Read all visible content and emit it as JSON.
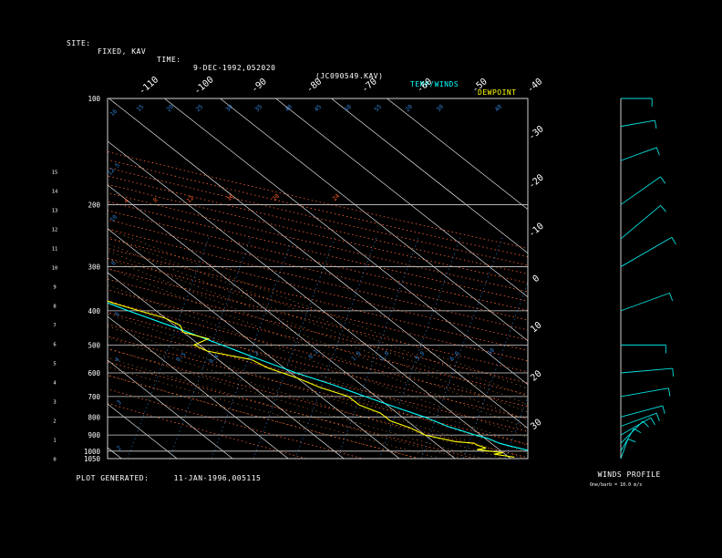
{
  "header": {
    "site_label": "SITE:",
    "site_value": "FIXED, KAV",
    "time_label": "TIME:",
    "time_value": "9-DEC-1992,052020",
    "file_id": "(JC090549.KAV)",
    "temp_legend": "TEMP/WINDS",
    "dewpoint_legend": "DEWPOINT"
  },
  "footer": {
    "generated_label": "PLOT GENERATED:",
    "generated_value": "11-JAN-1996,005115",
    "winds_title": "WINDS PROFILE",
    "winds_note": "One/barb = 10.0 m/s"
  },
  "colors": {
    "temperature": "#00ffff",
    "dewpoint": "#ffff00",
    "isobar": "#cfcfcf",
    "isotherm": "#ffffff",
    "dry_adiabat": "#ff6030",
    "moist_adiabat": "#ffa040",
    "mixing_ratio": "#2f7fd0",
    "wind": "#00e0e0"
  },
  "chart_data": {
    "type": "line",
    "title": "",
    "xlabel": "",
    "ylabel": "",
    "pressure_ticks": [
      "100",
      "200",
      "300",
      "400",
      "500",
      "600",
      "700",
      "800",
      "900",
      "1000",
      "1050"
    ],
    "pressure_values": [
      100,
      200,
      300,
      400,
      500,
      600,
      700,
      800,
      900,
      1000,
      1050
    ],
    "height_ticks": [
      "0",
      "1",
      "2",
      "3",
      "4",
      "5",
      "6",
      "7",
      "8",
      "9",
      "10",
      "11",
      "12",
      "13",
      "14",
      "15"
    ],
    "top_temp_ticks": [
      "-110",
      "-100",
      "-90",
      "-80",
      "-70",
      "-60",
      "-50",
      "-40"
    ],
    "right_temp_ticks": [
      "-30",
      "-20",
      "-10",
      "0",
      "10",
      "20",
      "30"
    ],
    "blue_labels": [
      "16",
      "15",
      "20",
      "25",
      "30",
      "35",
      "40",
      "45",
      "50",
      "55",
      "12.5",
      "10",
      "8",
      "6",
      "4",
      "3",
      "2",
      "0.5",
      "0.4",
      "0.2",
      "0.1",
      "1.0",
      "2.0",
      "3.0",
      "6.0",
      "10",
      "20",
      "30",
      "40"
    ],
    "orange_labels": [
      "24",
      "20",
      "16",
      "12",
      "8",
      "4"
    ],
    "series": [
      {
        "name": "TEMP/WINDS",
        "points": [
          [
            1040,
            8
          ],
          [
            1020,
            7
          ],
          [
            1000,
            5.5
          ],
          [
            970,
            3
          ],
          [
            950,
            1.5
          ],
          [
            920,
            0.5
          ],
          [
            900,
            -1
          ],
          [
            850,
            -4
          ],
          [
            800,
            -6
          ],
          [
            750,
            -9
          ],
          [
            700,
            -12
          ],
          [
            650,
            -15
          ],
          [
            600,
            -19
          ],
          [
            550,
            -22.5
          ],
          [
            500,
            -26
          ],
          [
            450,
            -30
          ],
          [
            400,
            -35
          ],
          [
            350,
            -40
          ],
          [
            300,
            -46
          ],
          [
            250,
            -52
          ],
          [
            220,
            -54
          ],
          [
            200,
            -56
          ],
          [
            180,
            -59
          ],
          [
            160,
            -63
          ],
          [
            140,
            -66
          ],
          [
            120,
            -68
          ],
          [
            110,
            -67
          ],
          [
            100,
            -66
          ]
        ]
      },
      {
        "name": "DEWPOINT",
        "points": [
          [
            1040,
            1
          ],
          [
            1020,
            -2
          ],
          [
            1010,
            0
          ],
          [
            1000,
            -2
          ],
          [
            990,
            -4
          ],
          [
            980,
            -2
          ],
          [
            960,
            -3
          ],
          [
            950,
            -3
          ],
          [
            940,
            -6
          ],
          [
            920,
            -8
          ],
          [
            900,
            -10
          ],
          [
            860,
            -11
          ],
          [
            820,
            -13
          ],
          [
            780,
            -13
          ],
          [
            740,
            -15
          ],
          [
            700,
            -15
          ],
          [
            660,
            -18
          ],
          [
            620,
            -20
          ],
          [
            580,
            -23
          ],
          [
            550,
            -24
          ],
          [
            520,
            -30
          ],
          [
            500,
            -31
          ],
          [
            480,
            -27
          ],
          [
            460,
            -30
          ],
          [
            440,
            -29
          ],
          [
            420,
            -30
          ],
          [
            400,
            -33
          ],
          [
            380,
            -36
          ],
          [
            360,
            -38
          ],
          [
            340,
            -37
          ],
          [
            330,
            -45
          ],
          [
            320,
            -39
          ],
          [
            310,
            -48
          ],
          [
            300,
            -49
          ],
          [
            290,
            -42
          ],
          [
            280,
            -50
          ],
          [
            265,
            -53
          ],
          [
            255,
            -51
          ],
          [
            240,
            -57
          ],
          [
            225,
            -60
          ],
          [
            210,
            -66
          ],
          [
            200,
            -70
          ],
          [
            190,
            -72
          ],
          [
            170,
            -72
          ],
          [
            150,
            -77
          ],
          [
            130,
            -80
          ],
          [
            115,
            -80
          ],
          [
            100,
            -80
          ]
        ]
      }
    ],
    "winds": [
      {
        "p": 1050,
        "dir": 200,
        "spd": 12
      },
      {
        "p": 1000,
        "dir": 210,
        "spd": 15
      },
      {
        "p": 950,
        "dir": 225,
        "spd": 18
      },
      {
        "p": 900,
        "dir": 240,
        "spd": 20
      },
      {
        "p": 850,
        "dir": 250,
        "spd": 22
      },
      {
        "p": 800,
        "dir": 255,
        "spd": 25
      },
      {
        "p": 700,
        "dir": 260,
        "spd": 28
      },
      {
        "p": 600,
        "dir": 265,
        "spd": 30
      },
      {
        "p": 500,
        "dir": 270,
        "spd": 26
      },
      {
        "p": 400,
        "dir": 250,
        "spd": 30
      },
      {
        "p": 300,
        "dir": 240,
        "spd": 34
      },
      {
        "p": 250,
        "dir": 230,
        "spd": 30
      },
      {
        "p": 200,
        "dir": 235,
        "spd": 28
      },
      {
        "p": 150,
        "dir": 250,
        "spd": 22
      },
      {
        "p": 120,
        "dir": 260,
        "spd": 20
      },
      {
        "p": 100,
        "dir": 270,
        "spd": 18
      }
    ]
  }
}
